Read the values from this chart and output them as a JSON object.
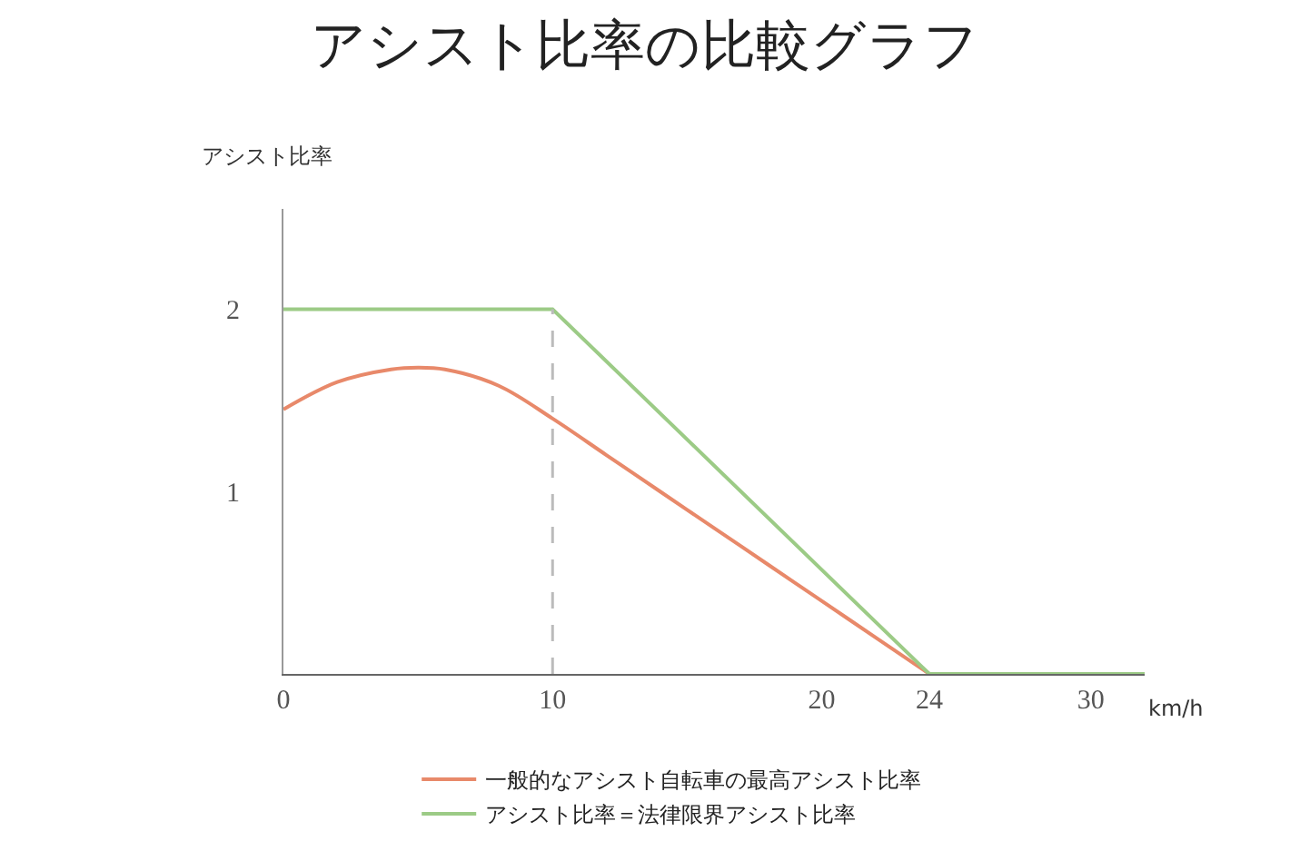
{
  "chart_data": {
    "type": "line",
    "title": "アシスト比率の比較グラフ",
    "xlabel": "km/h",
    "ylabel": "アシスト比率",
    "series": [
      {
        "name": "一般的なアシスト自転車の最高アシスト比率",
        "color": "#e8896a",
        "x": [
          0,
          2,
          4,
          5,
          6,
          8,
          10,
          12,
          14,
          16,
          18,
          20,
          22,
          24
        ],
        "values": [
          1.45,
          1.6,
          1.67,
          1.68,
          1.67,
          1.58,
          1.4,
          1.2,
          1.0,
          0.8,
          0.6,
          0.4,
          0.2,
          0
        ]
      },
      {
        "name": "アシスト比率＝法律限界アシスト比率",
        "color": "#9ccb86",
        "x": [
          0,
          10,
          24,
          32
        ],
        "values": [
          2,
          2,
          0,
          0
        ]
      }
    ],
    "xlim": [
      0,
      32
    ],
    "ylim": [
      0,
      2.55
    ],
    "xticks": [
      0,
      10,
      20,
      24,
      30
    ],
    "yticks": [
      1,
      2
    ],
    "ref_lines": [
      {
        "axis": "x",
        "value": 10,
        "color": "#bbbbbb",
        "line_style": "dashed"
      }
    ],
    "legend": "bottom",
    "marker": "none",
    "line_style": "solid"
  }
}
